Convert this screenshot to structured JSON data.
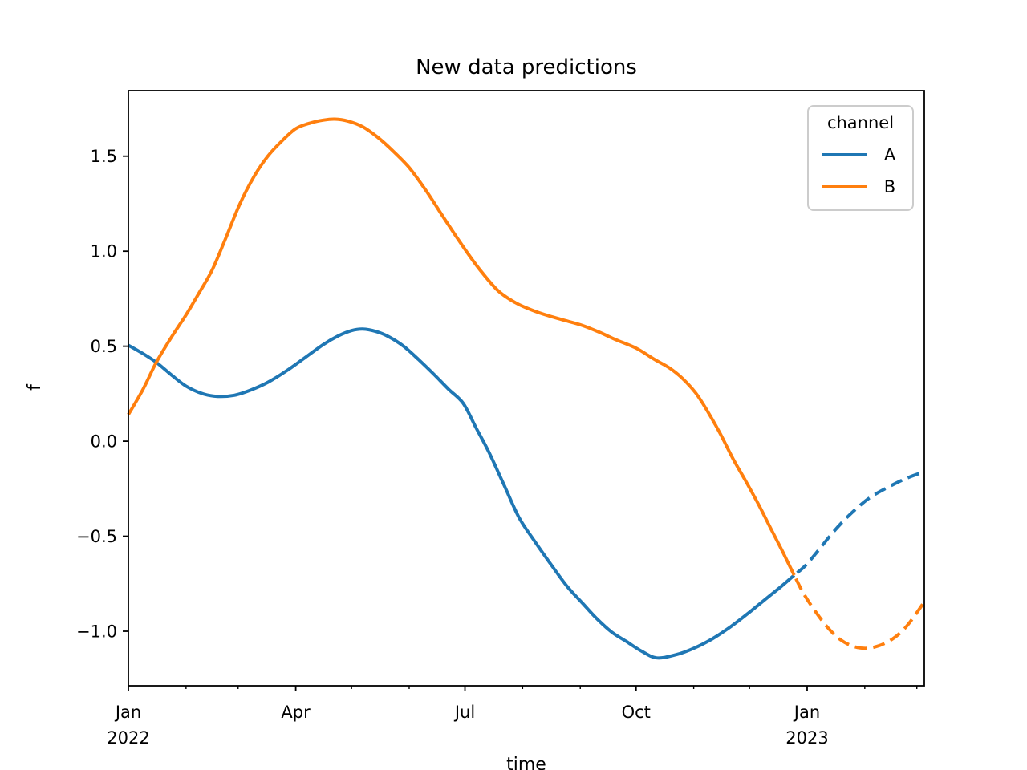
{
  "figure": {
    "background": "#ffffff",
    "text_color": "#000000"
  },
  "chart_data": {
    "type": "line",
    "title": "New data predictions",
    "xlabel": "time",
    "ylabel": "f",
    "x_unit": "days since 2022-01-01",
    "xlim": [
      0,
      428
    ],
    "ylim": [
      -1.287,
      1.845
    ],
    "grid": false,
    "y_ticks": [
      {
        "value": 1.5,
        "label": "1.5"
      },
      {
        "value": 1.0,
        "label": "1.0"
      },
      {
        "value": 0.5,
        "label": "0.5"
      },
      {
        "value": 0.0,
        "label": "0.0"
      },
      {
        "value": -0.5,
        "label": "−0.5"
      },
      {
        "value": -1.0,
        "label": "−1.0"
      }
    ],
    "x_ticks_major": [
      {
        "day": 0,
        "label": [
          "Jan",
          "2022"
        ]
      },
      {
        "day": 90,
        "label": [
          "Apr"
        ]
      },
      {
        "day": 181,
        "label": [
          "Jul"
        ]
      },
      {
        "day": 273,
        "label": [
          "Oct"
        ]
      },
      {
        "day": 365,
        "label": [
          "Jan",
          "2023"
        ]
      }
    ],
    "x_ticks_minor_days": [
      31,
      59,
      120,
      151,
      212,
      243,
      304,
      334,
      396,
      424
    ],
    "legend": {
      "title": "channel",
      "position": "upper right",
      "entries": [
        {
          "label": "A",
          "color": "#1f77b4",
          "style": "solid"
        },
        {
          "label": "B",
          "color": "#ff7f0e",
          "style": "solid"
        }
      ]
    },
    "colors": {
      "A": "#1f77b4",
      "B": "#ff7f0e"
    },
    "series": [
      {
        "name": "A",
        "channel": "A",
        "style": "solid",
        "color": "#1f77b4",
        "points": [
          [
            0,
            0.505
          ],
          [
            8,
            0.46
          ],
          [
            15,
            0.415
          ],
          [
            23,
            0.35
          ],
          [
            31,
            0.29
          ],
          [
            40,
            0.25
          ],
          [
            48,
            0.236
          ],
          [
            57,
            0.242
          ],
          [
            66,
            0.27
          ],
          [
            75,
            0.31
          ],
          [
            85,
            0.37
          ],
          [
            95,
            0.44
          ],
          [
            105,
            0.51
          ],
          [
            113,
            0.555
          ],
          [
            120,
            0.582
          ],
          [
            126,
            0.59
          ],
          [
            133,
            0.578
          ],
          [
            140,
            0.55
          ],
          [
            148,
            0.5
          ],
          [
            156,
            0.43
          ],
          [
            164,
            0.355
          ],
          [
            172,
            0.275
          ],
          [
            180,
            0.2
          ],
          [
            187,
            0.07
          ],
          [
            194,
            -0.06
          ],
          [
            202,
            -0.23
          ],
          [
            210,
            -0.4
          ],
          [
            218,
            -0.52
          ],
          [
            227,
            -0.645
          ],
          [
            236,
            -0.765
          ],
          [
            244,
            -0.85
          ],
          [
            252,
            -0.935
          ],
          [
            260,
            -1.005
          ],
          [
            268,
            -1.055
          ],
          [
            276,
            -1.105
          ],
          [
            284,
            -1.14
          ],
          [
            294,
            -1.125
          ],
          [
            304,
            -1.09
          ],
          [
            314,
            -1.04
          ],
          [
            324,
            -0.975
          ],
          [
            334,
            -0.9
          ],
          [
            344,
            -0.82
          ],
          [
            351,
            -0.765
          ],
          [
            358,
            -0.705
          ]
        ]
      },
      {
        "name": "A prediction",
        "channel": "A",
        "style": "dashed",
        "color": "#1f77b4",
        "points": [
          [
            358,
            -0.705
          ],
          [
            364,
            -0.655
          ],
          [
            371,
            -0.575
          ],
          [
            378,
            -0.49
          ],
          [
            385,
            -0.415
          ],
          [
            392,
            -0.35
          ],
          [
            399,
            -0.295
          ],
          [
            407,
            -0.25
          ],
          [
            415,
            -0.21
          ],
          [
            421,
            -0.185
          ],
          [
            428,
            -0.16
          ]
        ]
      },
      {
        "name": "B",
        "channel": "B",
        "style": "solid",
        "color": "#ff7f0e",
        "points": [
          [
            0,
            0.14
          ],
          [
            8,
            0.275
          ],
          [
            15,
            0.415
          ],
          [
            23,
            0.545
          ],
          [
            31,
            0.665
          ],
          [
            38,
            0.78
          ],
          [
            45,
            0.9
          ],
          [
            52,
            1.06
          ],
          [
            60,
            1.25
          ],
          [
            68,
            1.4
          ],
          [
            75,
            1.5
          ],
          [
            82,
            1.575
          ],
          [
            90,
            1.645
          ],
          [
            98,
            1.675
          ],
          [
            105,
            1.69
          ],
          [
            111,
            1.695
          ],
          [
            118,
            1.685
          ],
          [
            126,
            1.655
          ],
          [
            134,
            1.6
          ],
          [
            142,
            1.53
          ],
          [
            151,
            1.44
          ],
          [
            160,
            1.32
          ],
          [
            170,
            1.17
          ],
          [
            181,
            1.01
          ],
          [
            190,
            0.89
          ],
          [
            199,
            0.79
          ],
          [
            208,
            0.73
          ],
          [
            217,
            0.69
          ],
          [
            226,
            0.66
          ],
          [
            235,
            0.635
          ],
          [
            244,
            0.61
          ],
          [
            253,
            0.575
          ],
          [
            262,
            0.535
          ],
          [
            273,
            0.49
          ],
          [
            283,
            0.43
          ],
          [
            291,
            0.385
          ],
          [
            298,
            0.33
          ],
          [
            305,
            0.255
          ],
          [
            311,
            0.165
          ],
          [
            318,
            0.045
          ],
          [
            325,
            -0.09
          ],
          [
            332,
            -0.21
          ],
          [
            339,
            -0.335
          ],
          [
            346,
            -0.47
          ],
          [
            352,
            -0.585
          ],
          [
            358,
            -0.705
          ]
        ]
      },
      {
        "name": "B prediction",
        "channel": "B",
        "style": "dashed",
        "color": "#ff7f0e",
        "points": [
          [
            358,
            -0.705
          ],
          [
            363,
            -0.8
          ],
          [
            369,
            -0.89
          ],
          [
            376,
            -0.98
          ],
          [
            383,
            -1.045
          ],
          [
            390,
            -1.08
          ],
          [
            397,
            -1.09
          ],
          [
            404,
            -1.075
          ],
          [
            411,
            -1.04
          ],
          [
            417,
            -0.99
          ],
          [
            422,
            -0.93
          ],
          [
            428,
            -0.845
          ]
        ]
      }
    ]
  }
}
